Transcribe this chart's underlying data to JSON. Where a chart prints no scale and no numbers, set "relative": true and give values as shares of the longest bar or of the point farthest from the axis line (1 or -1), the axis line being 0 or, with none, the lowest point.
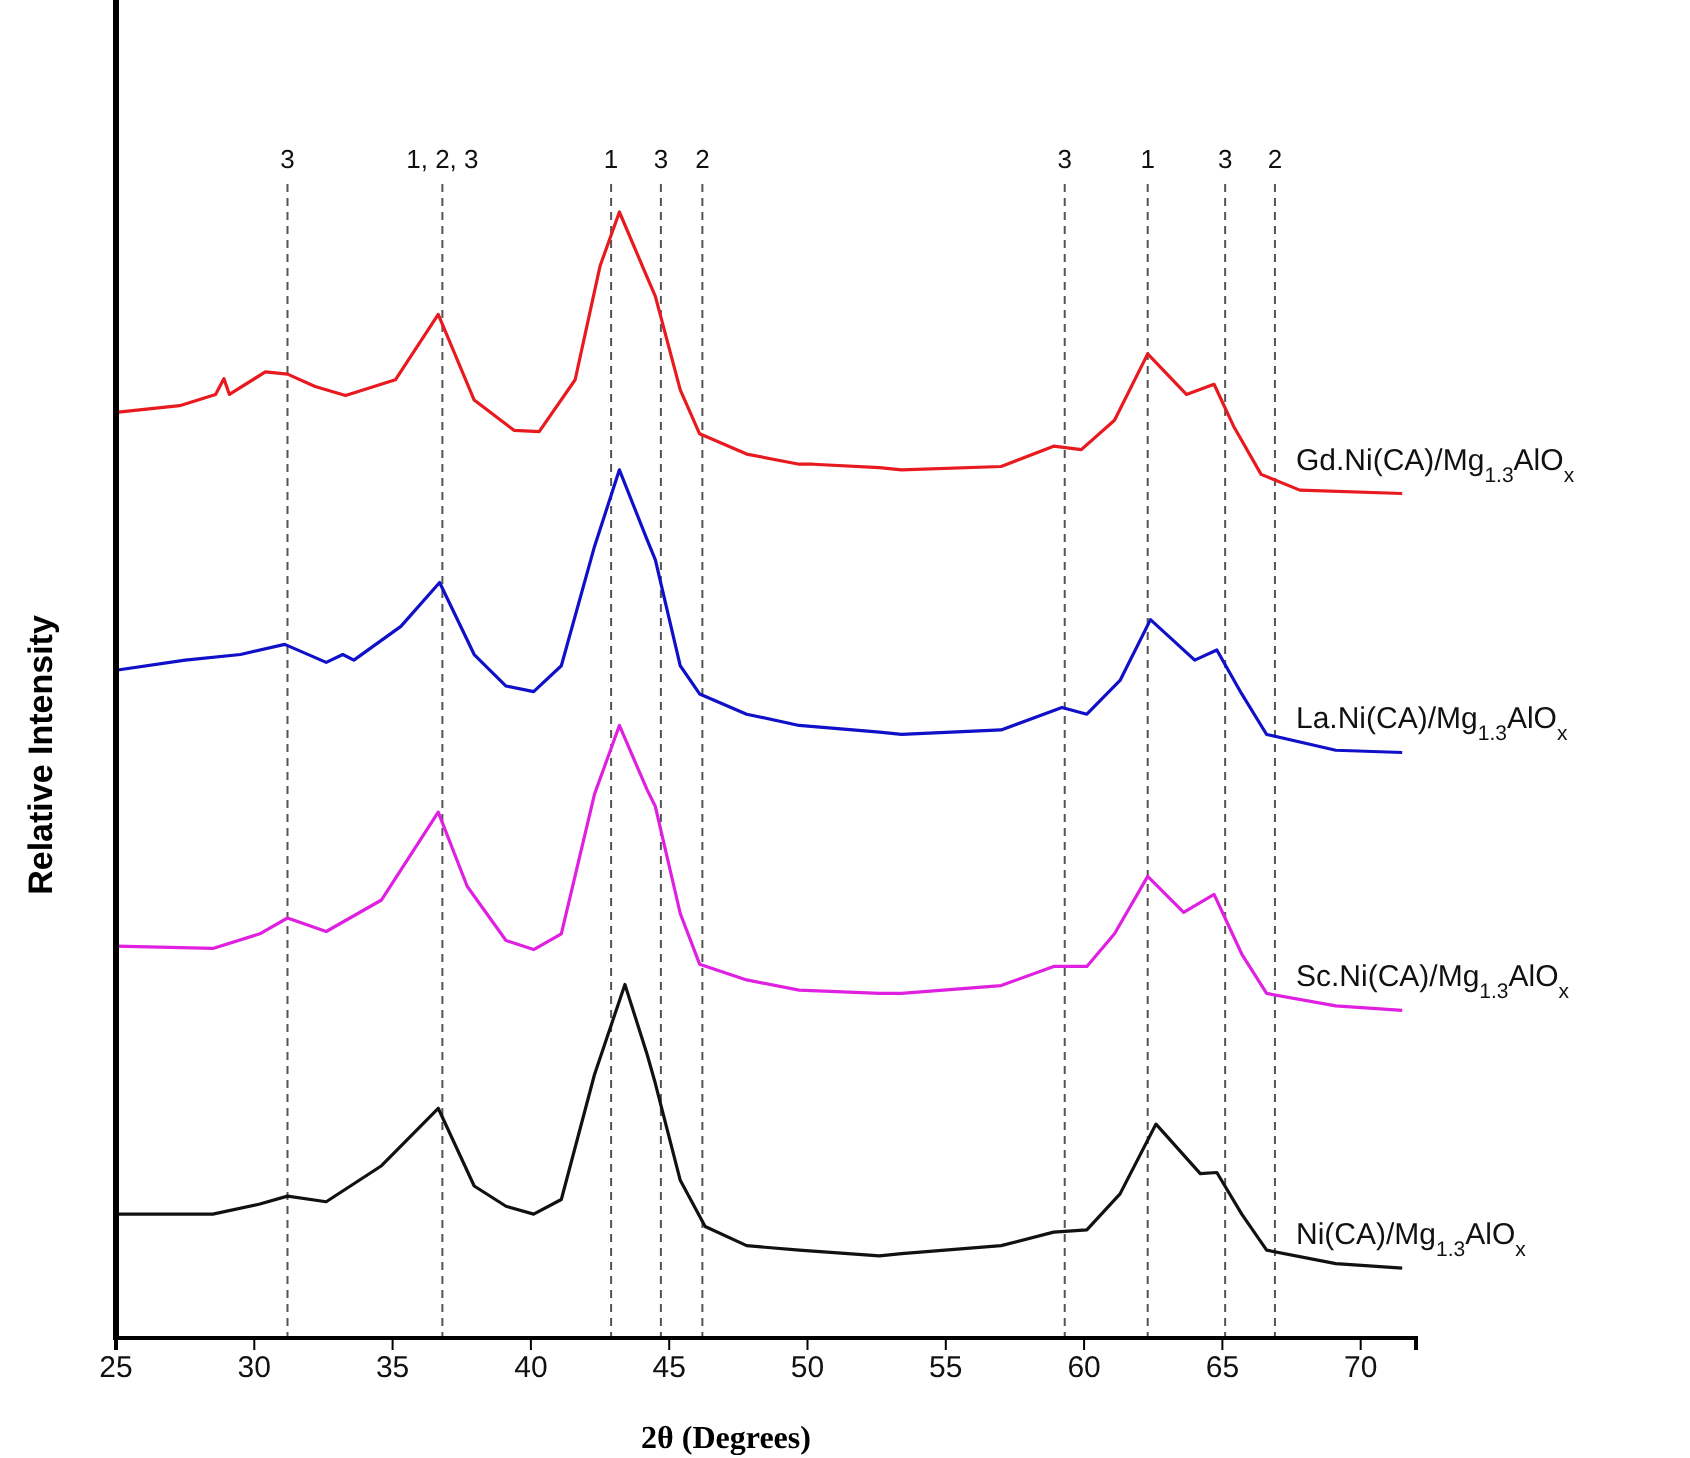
{
  "chart_data": {
    "type": "line",
    "relative": true,
    "xlabel": "2θ (Degrees)",
    "ylabel": "Relative Intensity",
    "xlim": [
      25,
      72
    ],
    "xticks": [
      25,
      30,
      35,
      40,
      45,
      50,
      55,
      60,
      65,
      70
    ],
    "grid": false,
    "legend": false,
    "marker": "none",
    "line_style": "solid",
    "series": [
      {
        "name": "Gd.Ni(CA)/Mg$_{1.3}$AlO$_{x}$",
        "color": "#e8191f",
        "x": [
          25,
          27.3,
          28.6,
          28.9,
          29.1,
          30.4,
          31.2,
          32.2,
          33.3,
          35.1,
          36.65,
          37.95,
          39.4,
          40.3,
          41.6,
          42.5,
          43.2,
          44.1,
          44.5,
          45.4,
          46.1,
          47.8,
          49.7,
          50.2,
          52.6,
          53.4,
          57.0,
          58.9,
          59.9,
          61.1,
          62.3,
          63.7,
          64.7,
          65.4,
          66.4,
          67.8,
          71.5
        ],
        "values": [
          0.822,
          0.828,
          0.838,
          0.852,
          0.838,
          0.858,
          0.856,
          0.845,
          0.837,
          0.851,
          0.909,
          0.833,
          0.806,
          0.805,
          0.851,
          0.952,
          1,
          0.948,
          0.925,
          0.842,
          0.803,
          0.785,
          0.776,
          0.776,
          0.773,
          0.771,
          0.774,
          0.792,
          0.789,
          0.815,
          0.874,
          0.838,
          0.847,
          0.81,
          0.767,
          0.753,
          0.75
        ]
      },
      {
        "name": "La.Ni(CA)/Mg$_{1.3}$AlO$_{x}$",
        "color": "#1010c8",
        "x": [
          25,
          27.5,
          29.5,
          31.1,
          32.6,
          33.2,
          33.6,
          35.3,
          36.7,
          37.95,
          39.1,
          40.1,
          41.1,
          42.3,
          43.2,
          44.2,
          44.5,
          45.4,
          46.1,
          47.8,
          49.7,
          52.6,
          53.4,
          57.0,
          59.2,
          60.1,
          61.3,
          62.4,
          64.0,
          64.8,
          65.7,
          66.6,
          69.1,
          71.5
        ],
        "values": [
          0.593,
          0.602,
          0.607,
          0.616,
          0.6,
          0.607,
          0.602,
          0.632,
          0.671,
          0.607,
          0.579,
          0.574,
          0.597,
          0.703,
          0.771,
          0.709,
          0.691,
          0.597,
          0.572,
          0.554,
          0.544,
          0.538,
          0.536,
          0.54,
          0.56,
          0.554,
          0.584,
          0.638,
          0.602,
          0.611,
          0.572,
          0.536,
          0.522,
          0.52
        ]
      },
      {
        "name": "Sc.Ni(CA)/Mg$_{1.3}$AlO$_{x}$",
        "color": "#e020e0",
        "x": [
          25,
          28.5,
          30.2,
          31.2,
          32.6,
          34.6,
          36.65,
          37.7,
          39.1,
          40.1,
          41.1,
          42.3,
          43.2,
          44.2,
          44.5,
          45.4,
          46.1,
          47.8,
          49.7,
          52.6,
          53.4,
          57.0,
          58.9,
          60.1,
          61.1,
          62.3,
          63.6,
          64.7,
          65.7,
          66.6,
          69.1,
          71.5
        ],
        "values": [
          0.348,
          0.346,
          0.359,
          0.373,
          0.361,
          0.389,
          0.467,
          0.401,
          0.353,
          0.345,
          0.359,
          0.483,
          0.544,
          0.487,
          0.472,
          0.377,
          0.332,
          0.318,
          0.309,
          0.306,
          0.306,
          0.313,
          0.33,
          0.33,
          0.359,
          0.41,
          0.378,
          0.394,
          0.341,
          0.306,
          0.295,
          0.291
        ]
      },
      {
        "name": "Ni(CA)/Mg$_{1.3}$AlO$_{x}$",
        "color": "#111111",
        "x": [
          25,
          28.5,
          30.2,
          31.2,
          32.6,
          34.6,
          36.65,
          37.95,
          39.1,
          40.1,
          41.1,
          42.3,
          43.4,
          44.2,
          44.5,
          45.4,
          46.3,
          47.8,
          49.7,
          52.6,
          53.4,
          57.0,
          58.9,
          60.1,
          61.3,
          62.6,
          64.2,
          64.8,
          65.7,
          66.6,
          69.1,
          71.5
        ],
        "values": [
          0.11,
          0.11,
          0.119,
          0.126,
          0.121,
          0.153,
          0.204,
          0.135,
          0.117,
          0.11,
          0.123,
          0.234,
          0.314,
          0.252,
          0.226,
          0.14,
          0.099,
          0.082,
          0.078,
          0.073,
          0.075,
          0.082,
          0.094,
          0.096,
          0.128,
          0.19,
          0.146,
          0.147,
          0.11,
          0.078,
          0.066,
          0.062
        ]
      }
    ],
    "ref_lines": [
      {
        "axis": "x",
        "value": 31.2,
        "color": "#555555",
        "line_style": "dashed"
      },
      {
        "axis": "x",
        "value": 36.8,
        "color": "#555555",
        "line_style": "dashed"
      },
      {
        "axis": "x",
        "value": 42.9,
        "color": "#555555",
        "line_style": "dashed"
      },
      {
        "axis": "x",
        "value": 44.7,
        "color": "#555555",
        "line_style": "dashed"
      },
      {
        "axis": "x",
        "value": 46.2,
        "color": "#555555",
        "line_style": "dashed"
      },
      {
        "axis": "x",
        "value": 59.3,
        "color": "#555555",
        "line_style": "dashed"
      },
      {
        "axis": "x",
        "value": 62.3,
        "color": "#555555",
        "line_style": "dashed"
      },
      {
        "axis": "x",
        "value": 65.1,
        "color": "#555555",
        "line_style": "dashed"
      },
      {
        "axis": "x",
        "value": 66.9,
        "color": "#555555",
        "line_style": "dashed"
      }
    ],
    "annotations": [
      "3",
      "1, 2, 3",
      "1",
      "3",
      "2",
      "3",
      "1",
      "3",
      "2"
    ]
  }
}
